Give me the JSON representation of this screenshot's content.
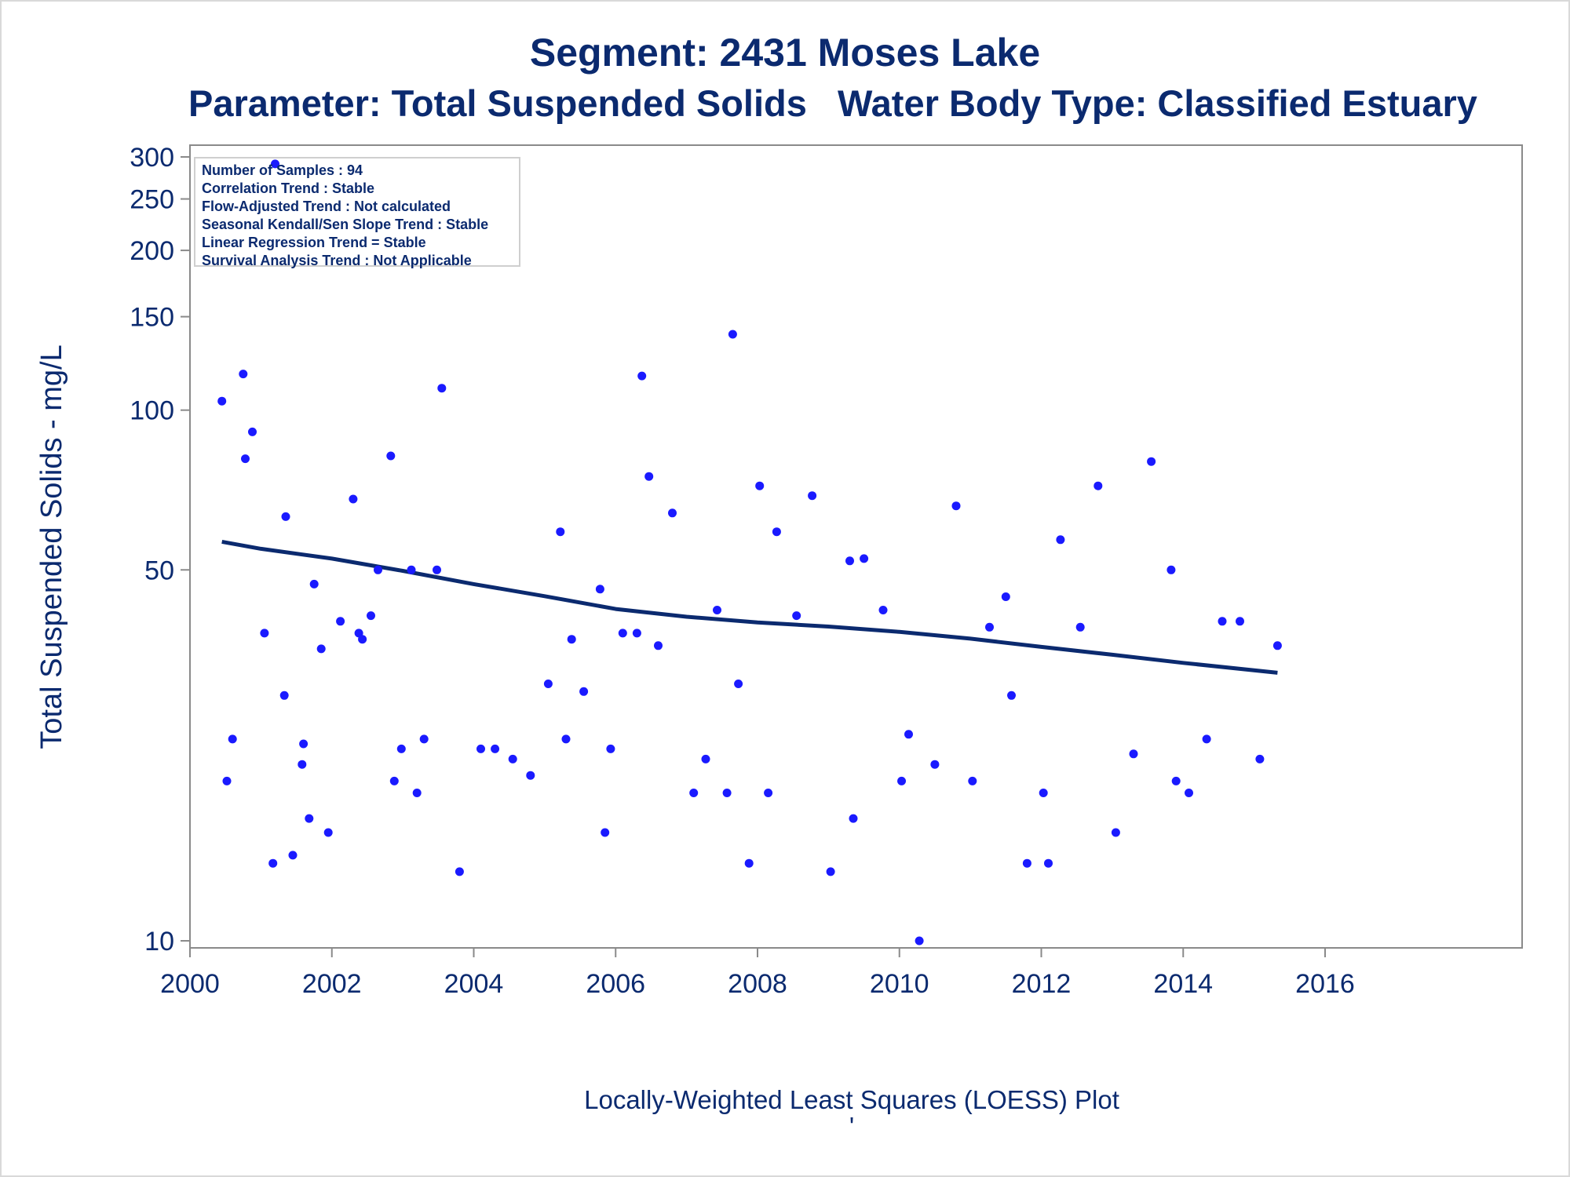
{
  "titles": {
    "line1": "Segment: 2431  Moses Lake",
    "line2": "Parameter: Total Suspended Solids   Water Body Type: Classified Estuary"
  },
  "stats": [
    "Number of Samples : 94",
    "Correlation Trend : Stable",
    "Flow-Adjusted Trend : Not calculated",
    "Seasonal Kendall/Sen Slope Trend : Stable",
    "Linear Regression Trend = Stable",
    "Survival Analysis Trend : Not Applicable"
  ],
  "footnote": "Locally-Weighted Least Squares (LOESS) Plot",
  "footnote_mark": "'",
  "colors": {
    "text": "#0b2a6f",
    "points": "#1a1aff",
    "line": "#0b2a6f",
    "axis": "#8a8a8a"
  },
  "chart_data": {
    "type": "scatter",
    "ylabel": "Total Suspended Solids - mg/L",
    "xlabel": "",
    "y_scale": "log",
    "xlim": [
      2000,
      2016
    ],
    "ylim": [
      10,
      300
    ],
    "xticks": [
      "2000",
      "2002",
      "2004",
      "2006",
      "2008",
      "2010",
      "2012",
      "2014",
      "2016"
    ],
    "yticks": [
      "10",
      "50",
      "100",
      "150",
      "200",
      "250",
      "300"
    ],
    "points": [
      [
        2000.45,
        104
      ],
      [
        2000.52,
        20
      ],
      [
        2000.6,
        24
      ],
      [
        2000.75,
        117
      ],
      [
        2000.78,
        81
      ],
      [
        2000.88,
        91
      ],
      [
        2001.05,
        38
      ],
      [
        2001.17,
        14
      ],
      [
        2001.2,
        291
      ],
      [
        2001.33,
        29
      ],
      [
        2001.35,
        63
      ],
      [
        2001.45,
        14.5
      ],
      [
        2001.58,
        21.5
      ],
      [
        2001.6,
        23.5
      ],
      [
        2001.68,
        17
      ],
      [
        2001.75,
        47
      ],
      [
        2001.85,
        35.5
      ],
      [
        2001.95,
        16
      ],
      [
        2002.12,
        40
      ],
      [
        2002.3,
        68
      ],
      [
        2002.38,
        38
      ],
      [
        2002.43,
        37
      ],
      [
        2002.55,
        41
      ],
      [
        2002.65,
        50
      ],
      [
        2002.83,
        82
      ],
      [
        2002.88,
        20
      ],
      [
        2002.98,
        23
      ],
      [
        2003.12,
        50
      ],
      [
        2003.2,
        19
      ],
      [
        2003.3,
        24
      ],
      [
        2003.48,
        50
      ],
      [
        2003.55,
        110
      ],
      [
        2003.8,
        13.5
      ],
      [
        2004.1,
        23
      ],
      [
        2004.3,
        23
      ],
      [
        2004.55,
        22
      ],
      [
        2004.8,
        20.5
      ],
      [
        2005.05,
        30.5
      ],
      [
        2005.22,
        59
      ],
      [
        2005.3,
        24
      ],
      [
        2005.38,
        37
      ],
      [
        2005.55,
        29.5
      ],
      [
        2005.78,
        46
      ],
      [
        2005.85,
        16
      ],
      [
        2005.93,
        23
      ],
      [
        2006.1,
        38
      ],
      [
        2006.3,
        38
      ],
      [
        2006.37,
        116
      ],
      [
        2006.47,
        75
      ],
      [
        2006.6,
        36
      ],
      [
        2006.8,
        64
      ],
      [
        2007.1,
        19
      ],
      [
        2007.27,
        22
      ],
      [
        2007.43,
        42
      ],
      [
        2007.57,
        19
      ],
      [
        2007.65,
        139
      ],
      [
        2007.73,
        30.5
      ],
      [
        2007.88,
        14
      ],
      [
        2008.03,
        72
      ],
      [
        2008.15,
        19
      ],
      [
        2008.27,
        59
      ],
      [
        2008.55,
        41
      ],
      [
        2008.77,
        69
      ],
      [
        2009.03,
        13.5
      ],
      [
        2009.3,
        52
      ],
      [
        2009.35,
        17
      ],
      [
        2009.5,
        52.5
      ],
      [
        2009.77,
        42
      ],
      [
        2010.03,
        20
      ],
      [
        2010.13,
        24.5
      ],
      [
        2010.28,
        10
      ],
      [
        2010.5,
        21.5
      ],
      [
        2010.8,
        66
      ],
      [
        2011.03,
        20
      ],
      [
        2011.27,
        39
      ],
      [
        2011.5,
        44.5
      ],
      [
        2011.58,
        29
      ],
      [
        2011.8,
        14
      ],
      [
        2012.03,
        19
      ],
      [
        2012.1,
        14
      ],
      [
        2012.27,
        57
      ],
      [
        2012.55,
        39
      ],
      [
        2012.8,
        72
      ],
      [
        2013.05,
        16
      ],
      [
        2013.3,
        22.5
      ],
      [
        2013.55,
        80
      ],
      [
        2013.83,
        50
      ],
      [
        2013.9,
        20
      ],
      [
        2014.08,
        19
      ],
      [
        2014.33,
        24
      ],
      [
        2014.55,
        40
      ],
      [
        2014.8,
        40
      ],
      [
        2015.08,
        22
      ],
      [
        2015.33,
        36
      ]
    ],
    "loess": [
      [
        2000.45,
        56.5
      ],
      [
        2001,
        54.8
      ],
      [
        2002,
        52.5
      ],
      [
        2003,
        49.8
      ],
      [
        2004,
        47
      ],
      [
        2005,
        44.6
      ],
      [
        2006,
        42.2
      ],
      [
        2007,
        40.8
      ],
      [
        2008,
        39.8
      ],
      [
        2009,
        39.1
      ],
      [
        2010,
        38.2
      ],
      [
        2011,
        37.1
      ],
      [
        2012,
        35.8
      ],
      [
        2013,
        34.6
      ],
      [
        2014,
        33.4
      ],
      [
        2015.33,
        32
      ]
    ]
  }
}
